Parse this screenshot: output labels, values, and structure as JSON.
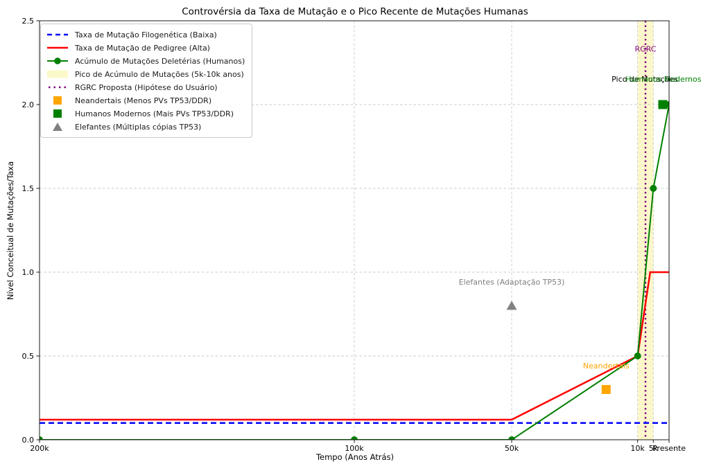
{
  "chart_data": {
    "type": "line",
    "title": "Controvérsia da Taxa de Mutação e o Pico Recente de Mutações Humanas",
    "xlabel": "Tempo (Anos Atrás)",
    "ylabel": "Nível Conceitual de Mutações/Taxa",
    "grid": true,
    "legend_position": "upper left",
    "x_axis": {
      "range_kyr": [
        200,
        0
      ],
      "ticks": [
        {
          "label": "200k",
          "kyr": 200
        },
        {
          "label": "100k",
          "kyr": 100
        },
        {
          "label": "50k",
          "kyr": 50
        },
        {
          "label": "10k",
          "kyr": 10
        },
        {
          "label": "5k",
          "kyr": 5
        },
        {
          "label": "Presente",
          "kyr": 0
        }
      ]
    },
    "y_axis": {
      "range": [
        0,
        2.5
      ],
      "ticks": [
        {
          "label": "0.0",
          "value": 0.0
        },
        {
          "label": "0.5",
          "value": 0.5
        },
        {
          "label": "1.0",
          "value": 1.0
        },
        {
          "label": "1.5",
          "value": 1.5
        },
        {
          "label": "2.0",
          "value": 2.0
        },
        {
          "label": "2.5",
          "value": 2.5
        }
      ]
    },
    "series": [
      {
        "name": "Taxa de Mutação Filogenética (Baixa)",
        "color": "#0000ff",
        "line_style": "dashed",
        "marker": "none",
        "points_kyr_value": [
          [
            200,
            0.1
          ],
          [
            0,
            0.1
          ]
        ]
      },
      {
        "name": "Taxa de Mutação de Pedigree (Alta)",
        "color": "#ff0000",
        "line_style": "solid",
        "marker": "none",
        "points_kyr_value": [
          [
            200,
            0.12
          ],
          [
            50,
            0.12
          ],
          [
            10,
            0.5
          ],
          [
            6,
            1.0
          ],
          [
            0,
            1.0
          ]
        ]
      },
      {
        "name": "Acúmulo de Mutações Deletérias (Humanos)",
        "color": "#008000",
        "line_style": "solid",
        "marker": "circle",
        "points_kyr_value": [
          [
            200,
            0
          ],
          [
            100,
            0
          ],
          [
            50,
            0
          ],
          [
            10,
            0.5
          ],
          [
            5,
            1.5
          ],
          [
            0,
            2.0
          ]
        ]
      }
    ],
    "band": {
      "label": "Pico de Acúmulo de Mutações (5k-10k anos)",
      "from_kyr": 10,
      "to_kyr": 5,
      "color": "#f7f1a0",
      "opacity": 0.55
    },
    "vline": {
      "label": "RGRC Proposta (Hipótese do Usuário)",
      "x_kyr": 7.5,
      "color": "#800080",
      "style": "dotted"
    },
    "scatter": [
      {
        "name": "Neandertais (Menos PVs TP53/DDR)",
        "marker": "square",
        "color": "#ffa500",
        "x_kyr": 20,
        "y": 0.3
      },
      {
        "name": "Humanos Modernos (Mais PVs TP53/DDR)",
        "marker": "square",
        "color": "#008000",
        "x_kyr": 2,
        "y": 2.0
      },
      {
        "name": "Elefantes (Múltiplas cópias TP53)",
        "marker": "triangle",
        "color": "#808080",
        "x_kyr": 50,
        "y": 0.8
      }
    ],
    "annotations": [
      {
        "text": "RGRC",
        "color": "#800080",
        "x_kyr": 7.5,
        "y": 2.33
      },
      {
        "text": "Pico de Mutações",
        "color": "#000000",
        "x_kyr": 7.7,
        "y": 2.15
      },
      {
        "text": "Humanos Modernos",
        "color": "#008000",
        "x_kyr": 1.8,
        "y": 2.15
      },
      {
        "text": "Neandertais",
        "color": "#ffa500",
        "x_kyr": 20,
        "y": 0.44
      },
      {
        "text": "Elefantes (Adaptação TP53)",
        "color": "#808080",
        "x_kyr": 50,
        "y": 0.94
      }
    ]
  },
  "legend": {
    "items": [
      {
        "label": "Taxa de Mutação Filogenética (Baixa)",
        "marker": "dashed-line",
        "color": "#0000ff"
      },
      {
        "label": "Taxa de Mutação de Pedigree (Alta)",
        "marker": "line",
        "color": "#ff0000"
      },
      {
        "label": "Acúmulo de Mutações Deletérias (Humanos)",
        "marker": "line-circle",
        "color": "#008000"
      },
      {
        "label": "Pico de Acúmulo de Mutações (5k-10k anos)",
        "marker": "patch",
        "color": "#fbf8c9"
      },
      {
        "label": "RGRC Proposta (Hipótese do Usuário)",
        "marker": "dotted-line",
        "color": "#800080"
      },
      {
        "label": "Neandertais (Menos PVs TP53/DDR)",
        "marker": "square",
        "color": "#ffa500"
      },
      {
        "label": "Humanos Modernos (Mais PVs TP53/DDR)",
        "marker": "square",
        "color": "#008000"
      },
      {
        "label": "Elefantes (Múltiplas cópias TP53)",
        "marker": "triangle",
        "color": "#808080"
      }
    ]
  }
}
